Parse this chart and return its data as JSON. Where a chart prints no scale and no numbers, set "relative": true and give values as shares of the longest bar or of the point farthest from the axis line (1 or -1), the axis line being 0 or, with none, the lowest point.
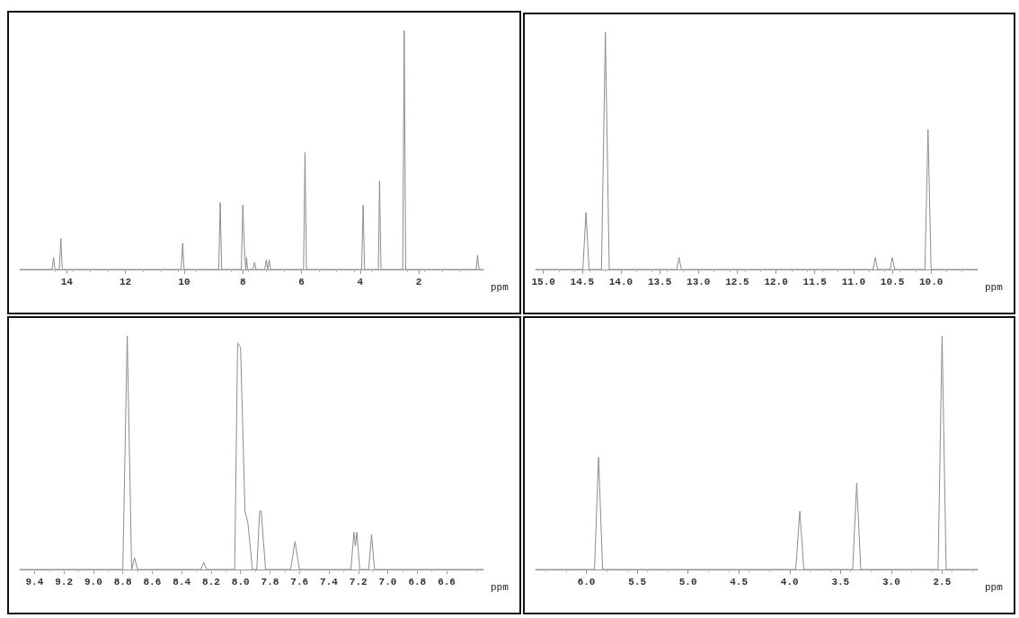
{
  "chart_data": [
    {
      "type": "line",
      "relative": true,
      "xlabel": "ppm",
      "xlim": [
        15.6,
        -0.2
      ],
      "xticks": [
        14,
        12,
        10,
        8,
        6,
        4,
        2
      ],
      "tick_labels": "x",
      "grid": false,
      "marker": "none",
      "line_style": "solid",
      "series": [
        {
          "color": "#8c8c8c",
          "x": [
            15.6,
            14.5,
            14.45,
            14.4,
            14.25,
            14.2,
            14.15,
            10.1,
            10.05,
            10.0,
            8.82,
            8.77,
            8.72,
            8.05,
            8.0,
            7.95,
            7.9,
            7.87,
            7.84,
            7.65,
            7.6,
            7.55,
            7.25,
            7.2,
            7.15,
            7.1,
            7.05,
            5.93,
            5.88,
            5.83,
            3.95,
            3.9,
            3.85,
            3.38,
            3.34,
            3.29,
            2.55,
            2.5,
            2.45,
            0.05,
            0,
            -0.05,
            -0.2
          ],
          "values": [
            0,
            0,
            0.05,
            0,
            0,
            0.13,
            0,
            0,
            0.11,
            0,
            0,
            0.28,
            0,
            0,
            0.27,
            0.1,
            0,
            0.05,
            0,
            0,
            0.03,
            0,
            0,
            0.04,
            0,
            0.04,
            0,
            0,
            0.49,
            0,
            0,
            0.27,
            0,
            0,
            0.37,
            0,
            0,
            1,
            0,
            0,
            0.06,
            0,
            0
          ]
        }
      ]
    },
    {
      "type": "line",
      "relative": true,
      "xlabel": "ppm",
      "xlim": [
        15.1,
        9.4
      ],
      "xticks": [
        {
          "value": 15,
          "label": "15.0"
        },
        14.5,
        {
          "value": 14,
          "label": "14.0"
        },
        13.5,
        {
          "value": 13,
          "label": "13.0"
        },
        12.5,
        {
          "value": 12,
          "label": "12.0"
        },
        11.5,
        {
          "value": 11,
          "label": "11.0"
        },
        10.5,
        {
          "value": 10,
          "label": "10.0"
        }
      ],
      "tick_labels": "x",
      "grid": false,
      "marker": "none",
      "line_style": "solid",
      "series": [
        {
          "color": "#8c8c8c",
          "x": [
            15.1,
            14.49,
            14.45,
            14.41,
            14.25,
            14.2,
            14.15,
            13.28,
            13.25,
            13.22,
            10.75,
            10.72,
            10.69,
            10.53,
            10.5,
            10.47,
            10.08,
            10.04,
            10.0,
            9.4
          ],
          "values": [
            0,
            0,
            0.24,
            0,
            0,
            1,
            0,
            0,
            0.05,
            0,
            0,
            0.05,
            0,
            0,
            0.05,
            0,
            0,
            0.59,
            0,
            0
          ]
        }
      ]
    },
    {
      "type": "line",
      "relative": true,
      "xlabel": "ppm",
      "xlim": [
        9.5,
        6.35
      ],
      "xticks": [
        9.4,
        9.2,
        {
          "value": 9,
          "label": "9.0"
        },
        8.8,
        8.6,
        8.4,
        8.2,
        {
          "value": 8,
          "label": "8.0"
        },
        7.8,
        7.6,
        7.4,
        7.2,
        {
          "value": 7,
          "label": "7.0"
        },
        6.8,
        6.6
      ],
      "tick_labels": "x",
      "grid": false,
      "marker": "none",
      "line_style": "solid",
      "series": [
        {
          "color": "#8c8c8c",
          "x": [
            9.5,
            8.8,
            8.77,
            8.74,
            8.72,
            8.7,
            8.27,
            8.25,
            8.23,
            8.04,
            8.02,
            8.0,
            7.97,
            7.95,
            7.92,
            7.89,
            7.87,
            7.86,
            7.83,
            7.66,
            7.63,
            7.6,
            7.25,
            7.23,
            7.22,
            7.21,
            7.19,
            7.13,
            7.11,
            7.09,
            6.35
          ],
          "values": [
            0,
            0,
            1,
            0,
            0.05,
            0,
            0,
            0.03,
            0,
            0,
            0.97,
            0.95,
            0.25,
            0.2,
            0,
            0,
            0.25,
            0.25,
            0,
            0,
            0.12,
            0,
            0,
            0.16,
            0.1,
            0.16,
            0,
            0,
            0.15,
            0,
            0
          ]
        }
      ]
    },
    {
      "type": "line",
      "relative": true,
      "xlabel": "ppm",
      "xlim": [
        6.5,
        2.15
      ],
      "xticks": [
        {
          "value": 6,
          "label": "6.0"
        },
        5.5,
        {
          "value": 5,
          "label": "5.0"
        },
        4.5,
        {
          "value": 4,
          "label": "4.0"
        },
        3.5,
        {
          "value": 3,
          "label": "3.0"
        },
        2.5
      ],
      "tick_labels": "x",
      "grid": false,
      "marker": "none",
      "line_style": "solid",
      "series": [
        {
          "color": "#8c8c8c",
          "x": [
            6.5,
            5.92,
            5.88,
            5.84,
            3.94,
            3.9,
            3.86,
            3.38,
            3.34,
            3.3,
            2.54,
            2.5,
            2.46,
            2.15
          ],
          "values": [
            0,
            0,
            0.48,
            0,
            0,
            0.25,
            0,
            0,
            0.37,
            0,
            0,
            1,
            0,
            0
          ]
        }
      ]
    }
  ]
}
